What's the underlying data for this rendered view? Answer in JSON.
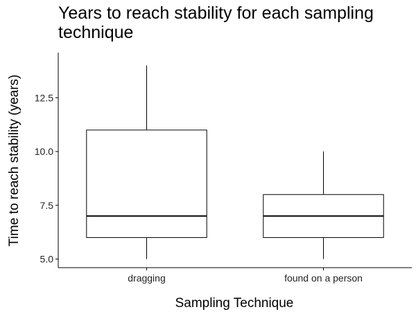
{
  "chart_data": {
    "type": "box",
    "title_lines": [
      "Years to reach stability for each sampling",
      "technique"
    ],
    "xlabel": "Sampling Technique",
    "ylabel": "Time to reach stability (years)",
    "ylim": [
      4.6,
      14.6
    ],
    "yticks": [
      5.0,
      7.5,
      10.0,
      12.5
    ],
    "ytick_labels": [
      "5.0",
      "7.5",
      "10.0",
      "12.5"
    ],
    "categories": [
      "dragging",
      "found on a person"
    ],
    "boxes": [
      {
        "category": "dragging",
        "min": 5,
        "q1": 6,
        "median": 7,
        "q3": 11,
        "max": 14
      },
      {
        "category": "found on a person",
        "min": 5,
        "q1": 6,
        "median": 7,
        "q3": 8,
        "max": 10
      }
    ],
    "grid": false,
    "legend": "none"
  }
}
